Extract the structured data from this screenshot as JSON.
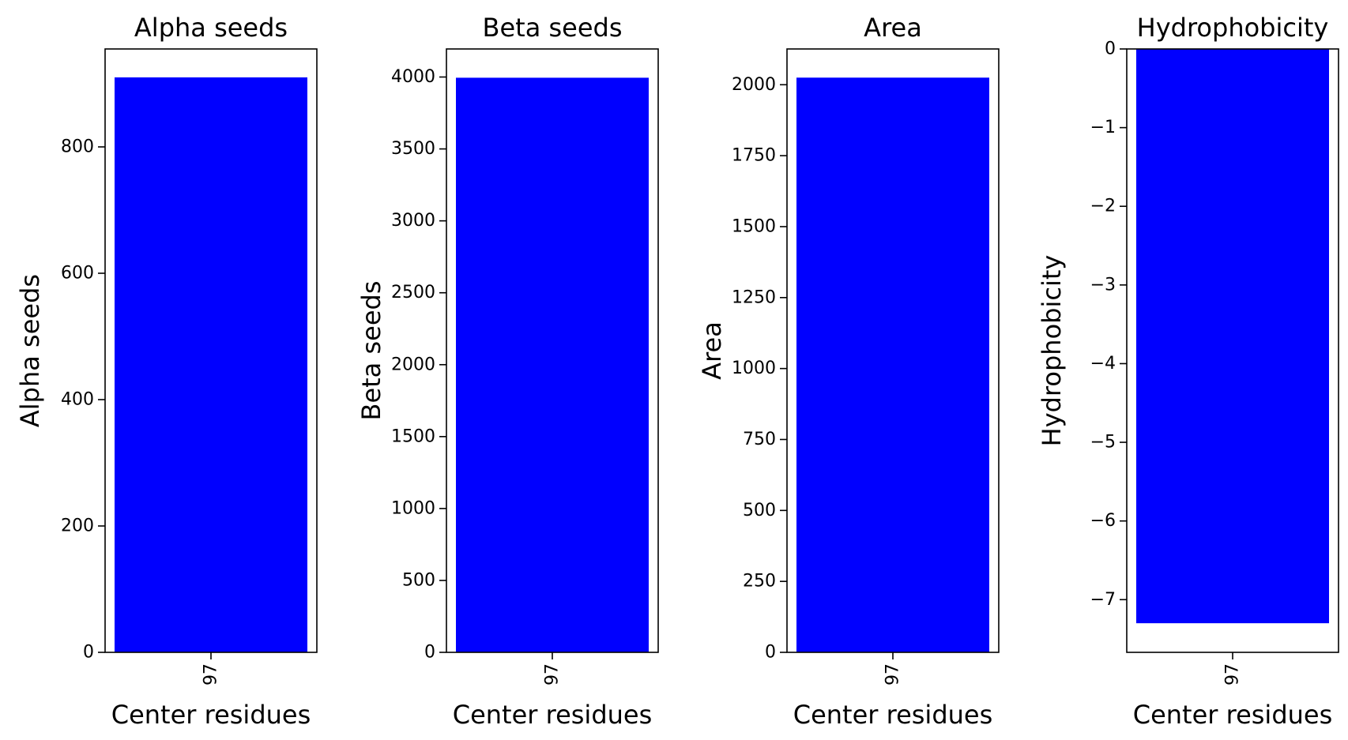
{
  "chart_data": [
    {
      "type": "bar",
      "title": "Alpha seeds",
      "xlabel": "Center residues",
      "ylabel": "Alpha seeds",
      "categories": [
        "97"
      ],
      "values": [
        910
      ],
      "ylim": [
        0,
        955
      ],
      "yticks": [
        0,
        200,
        400,
        600,
        800
      ],
      "ytick_labels": [
        "0",
        "200",
        "400",
        "600",
        "800"
      ],
      "color": "#0000ff"
    },
    {
      "type": "bar",
      "title": "Beta seeds",
      "xlabel": "Center residues",
      "ylabel": "Beta seeds",
      "categories": [
        "97"
      ],
      "values": [
        3995
      ],
      "ylim": [
        0,
        4195
      ],
      "yticks": [
        0,
        500,
        1000,
        1500,
        2000,
        2500,
        3000,
        3500,
        4000
      ],
      "ytick_labels": [
        "0",
        "500",
        "1000",
        "1500",
        "2000",
        "2500",
        "3000",
        "3500",
        "4000"
      ],
      "color": "#0000ff"
    },
    {
      "type": "bar",
      "title": "Area",
      "xlabel": "Center residues",
      "ylabel": "Area",
      "categories": [
        "97"
      ],
      "values": [
        2025
      ],
      "ylim": [
        0,
        2126
      ],
      "yticks": [
        0,
        250,
        500,
        750,
        1000,
        1250,
        1500,
        1750,
        2000
      ],
      "ytick_labels": [
        "0",
        "250",
        "500",
        "750",
        "1000",
        "1250",
        "1500",
        "1750",
        "2000"
      ],
      "color": "#0000ff"
    },
    {
      "type": "bar",
      "title": "Hydrophobicity",
      "xlabel": "Center residues",
      "ylabel": "Hydrophobicity",
      "categories": [
        "97"
      ],
      "values": [
        -7.3
      ],
      "ylim": [
        -7.67,
        0
      ],
      "yticks": [
        0,
        -1,
        -2,
        -3,
        -4,
        -5,
        -6,
        -7
      ],
      "ytick_labels": [
        "0",
        "−1",
        "−2",
        "−3",
        "−4",
        "−5",
        "−6",
        "−7"
      ],
      "color": "#0000ff"
    }
  ]
}
